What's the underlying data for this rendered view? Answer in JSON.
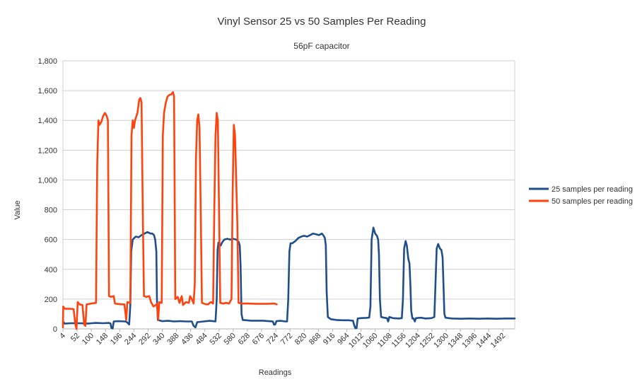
{
  "chart_data": {
    "type": "line",
    "title": "Vinyl Sensor 25 vs 50 Samples Per Reading",
    "subtitle": "56pF capacitor",
    "xlabel": "Readings",
    "ylabel": "Value",
    "ylim": [
      0,
      1800
    ],
    "xlim": [
      4,
      1532
    ],
    "yticks": [
      0,
      200,
      400,
      600,
      800,
      1000,
      1200,
      1400,
      1600,
      1800
    ],
    "ytick_labels": [
      "0",
      "200",
      "400",
      "600",
      "800",
      "1,000",
      "1,200",
      "1,400",
      "1,600",
      "1,800"
    ],
    "xticks": [
      4,
      52,
      100,
      148,
      196,
      244,
      292,
      340,
      388,
      436,
      484,
      532,
      580,
      628,
      676,
      724,
      772,
      820,
      868,
      916,
      964,
      1012,
      1060,
      1108,
      1156,
      1204,
      1252,
      1300,
      1348,
      1396,
      1444,
      1492
    ],
    "grid": true,
    "legend_position": "right",
    "series": [
      {
        "name": "25 samples per reading",
        "color": "#1f4e8c",
        "points": [
          [
            4,
            35
          ],
          [
            6,
            45
          ],
          [
            10,
            35
          ],
          [
            30,
            38
          ],
          [
            60,
            38
          ],
          [
            90,
            36
          ],
          [
            115,
            40
          ],
          [
            140,
            38
          ],
          [
            160,
            40
          ],
          [
            165,
            36
          ],
          [
            168,
            5
          ],
          [
            172,
            3
          ],
          [
            176,
            50
          ],
          [
            190,
            52
          ],
          [
            215,
            50
          ],
          [
            220,
            46
          ],
          [
            228,
            30
          ],
          [
            232,
            160
          ],
          [
            235,
            520
          ],
          [
            240,
            600
          ],
          [
            250,
            620
          ],
          [
            260,
            615
          ],
          [
            270,
            630
          ],
          [
            280,
            640
          ],
          [
            290,
            650
          ],
          [
            300,
            640
          ],
          [
            306,
            640
          ],
          [
            312,
            630
          ],
          [
            316,
            600
          ],
          [
            320,
            520
          ],
          [
            322,
            200
          ],
          [
            325,
            60
          ],
          [
            340,
            52
          ],
          [
            360,
            54
          ],
          [
            380,
            50
          ],
          [
            400,
            52
          ],
          [
            420,
            50
          ],
          [
            440,
            50
          ],
          [
            446,
            20
          ],
          [
            452,
            10
          ],
          [
            458,
            45
          ],
          [
            480,
            50
          ],
          [
            500,
            54
          ],
          [
            512,
            52
          ],
          [
            520,
            50
          ],
          [
            524,
            200
          ],
          [
            527,
            530
          ],
          [
            530,
            580
          ],
          [
            534,
            570
          ],
          [
            538,
            560
          ],
          [
            542,
            580
          ],
          [
            550,
            600
          ],
          [
            560,
            605
          ],
          [
            570,
            600
          ],
          [
            580,
            605
          ],
          [
            590,
            600
          ],
          [
            598,
            585
          ],
          [
            602,
            560
          ],
          [
            605,
            420
          ],
          [
            608,
            100
          ],
          [
            612,
            60
          ],
          [
            625,
            58
          ],
          [
            640,
            55
          ],
          [
            660,
            55
          ],
          [
            680,
            55
          ],
          [
            700,
            52
          ],
          [
            714,
            50
          ],
          [
            718,
            28
          ],
          [
            722,
            30
          ],
          [
            726,
            52
          ],
          [
            740,
            54
          ],
          [
            756,
            50
          ],
          [
            762,
            50
          ],
          [
            766,
            200
          ],
          [
            770,
            520
          ],
          [
            774,
            575
          ],
          [
            780,
            575
          ],
          [
            790,
            590
          ],
          [
            800,
            610
          ],
          [
            810,
            620
          ],
          [
            820,
            625
          ],
          [
            830,
            620
          ],
          [
            840,
            630
          ],
          [
            850,
            640
          ],
          [
            860,
            635
          ],
          [
            870,
            630
          ],
          [
            880,
            640
          ],
          [
            886,
            625
          ],
          [
            890,
            610
          ],
          [
            893,
            560
          ],
          [
            896,
            250
          ],
          [
            900,
            80
          ],
          [
            910,
            65
          ],
          [
            930,
            60
          ],
          [
            950,
            58
          ],
          [
            970,
            58
          ],
          [
            985,
            55
          ],
          [
            989,
            25
          ],
          [
            993,
            5
          ],
          [
            997,
            5
          ],
          [
            1001,
            70
          ],
          [
            1010,
            72
          ],
          [
            1030,
            74
          ],
          [
            1040,
            76
          ],
          [
            1044,
            150
          ],
          [
            1048,
            600
          ],
          [
            1054,
            680
          ],
          [
            1060,
            640
          ],
          [
            1066,
            625
          ],
          [
            1070,
            600
          ],
          [
            1073,
            500
          ],
          [
            1076,
            200
          ],
          [
            1080,
            80
          ],
          [
            1090,
            75
          ],
          [
            1100,
            72
          ],
          [
            1104,
            50
          ],
          [
            1108,
            80
          ],
          [
            1120,
            72
          ],
          [
            1140,
            70
          ],
          [
            1150,
            72
          ],
          [
            1154,
            200
          ],
          [
            1158,
            540
          ],
          [
            1163,
            590
          ],
          [
            1167,
            560
          ],
          [
            1172,
            470
          ],
          [
            1176,
            440
          ],
          [
            1179,
            300
          ],
          [
            1182,
            120
          ],
          [
            1186,
            70
          ],
          [
            1190,
            70
          ],
          [
            1194,
            50
          ],
          [
            1198,
            72
          ],
          [
            1215,
            75
          ],
          [
            1230,
            70
          ],
          [
            1250,
            72
          ],
          [
            1260,
            80
          ],
          [
            1264,
            300
          ],
          [
            1268,
            540
          ],
          [
            1273,
            570
          ],
          [
            1279,
            540
          ],
          [
            1284,
            530
          ],
          [
            1288,
            480
          ],
          [
            1291,
            300
          ],
          [
            1294,
            100
          ],
          [
            1298,
            75
          ],
          [
            1320,
            70
          ],
          [
            1350,
            68
          ],
          [
            1380,
            70
          ],
          [
            1410,
            68
          ],
          [
            1440,
            70
          ],
          [
            1470,
            68
          ],
          [
            1500,
            70
          ],
          [
            1532,
            70
          ]
        ]
      },
      {
        "name": "50 samples per reading",
        "color": "#ff420e",
        "points": [
          [
            4,
            10
          ],
          [
            5,
            150
          ],
          [
            8,
            140
          ],
          [
            12,
            135
          ],
          [
            30,
            135
          ],
          [
            40,
            133
          ],
          [
            46,
            30
          ],
          [
            50,
            0
          ],
          [
            54,
            180
          ],
          [
            60,
            165
          ],
          [
            70,
            160
          ],
          [
            76,
            30
          ],
          [
            80,
            20
          ],
          [
            84,
            165
          ],
          [
            100,
            170
          ],
          [
            116,
            175
          ],
          [
            120,
            1100
          ],
          [
            124,
            1400
          ],
          [
            128,
            1370
          ],
          [
            134,
            1390
          ],
          [
            140,
            1430
          ],
          [
            146,
            1450
          ],
          [
            152,
            1430
          ],
          [
            156,
            1400
          ],
          [
            160,
            220
          ],
          [
            166,
            215
          ],
          [
            176,
            220
          ],
          [
            180,
            170
          ],
          [
            200,
            165
          ],
          [
            212,
            165
          ],
          [
            218,
            60
          ],
          [
            222,
            180
          ],
          [
            232,
            175
          ],
          [
            236,
            1300
          ],
          [
            240,
            1400
          ],
          [
            244,
            1350
          ],
          [
            248,
            1400
          ],
          [
            256,
            1450
          ],
          [
            262,
            1540
          ],
          [
            266,
            1550
          ],
          [
            270,
            1520
          ],
          [
            274,
            800
          ],
          [
            278,
            220
          ],
          [
            286,
            215
          ],
          [
            296,
            220
          ],
          [
            302,
            180
          ],
          [
            310,
            150
          ],
          [
            318,
            160
          ],
          [
            322,
            170
          ],
          [
            326,
            60
          ],
          [
            330,
            180
          ],
          [
            338,
            175
          ],
          [
            342,
            1300
          ],
          [
            346,
            1450
          ],
          [
            352,
            1520
          ],
          [
            358,
            1560
          ],
          [
            364,
            1570
          ],
          [
            370,
            1575
          ],
          [
            376,
            1590
          ],
          [
            380,
            1560
          ],
          [
            384,
            200
          ],
          [
            392,
            215
          ],
          [
            398,
            175
          ],
          [
            406,
            220
          ],
          [
            410,
            160
          ],
          [
            420,
            180
          ],
          [
            430,
            175
          ],
          [
            434,
            220
          ],
          [
            440,
            200
          ],
          [
            446,
            170
          ],
          [
            450,
            300
          ],
          [
            454,
            1150
          ],
          [
            458,
            1400
          ],
          [
            462,
            1440
          ],
          [
            466,
            1350
          ],
          [
            470,
            800
          ],
          [
            474,
            175
          ],
          [
            480,
            170
          ],
          [
            488,
            165
          ],
          [
            496,
            165
          ],
          [
            500,
            175
          ],
          [
            506,
            180
          ],
          [
            512,
            170
          ],
          [
            516,
            800
          ],
          [
            520,
            1300
          ],
          [
            524,
            1450
          ],
          [
            528,
            1400
          ],
          [
            532,
            800
          ],
          [
            536,
            175
          ],
          [
            546,
            170
          ],
          [
            556,
            175
          ],
          [
            566,
            170
          ],
          [
            574,
            200
          ],
          [
            578,
            900
          ],
          [
            582,
            1370
          ],
          [
            586,
            1300
          ],
          [
            590,
            1000
          ],
          [
            594,
            700
          ],
          [
            598,
            175
          ],
          [
            610,
            170
          ],
          [
            630,
            170
          ],
          [
            660,
            168
          ],
          [
            690,
            168
          ],
          [
            720,
            170
          ],
          [
            727,
            165
          ]
        ]
      }
    ]
  }
}
